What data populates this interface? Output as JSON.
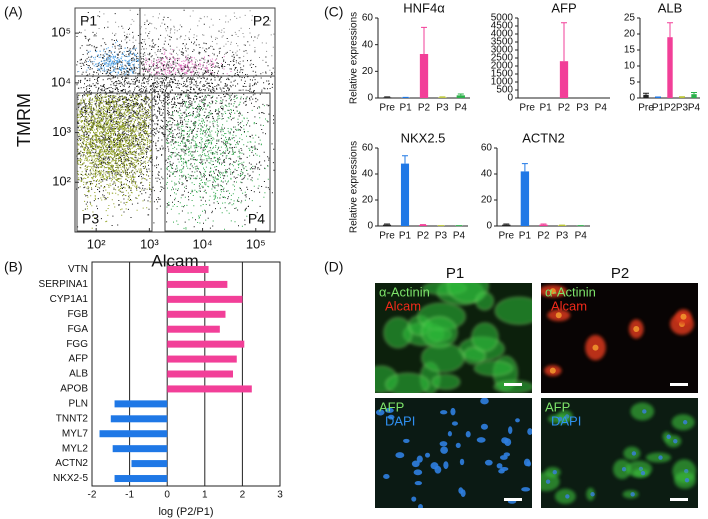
{
  "panel_labels": [
    "(A)",
    "(B)",
    "(C)",
    "(D)"
  ],
  "chart_data": [
    {
      "type": "scatter",
      "xlabel": "Alcam",
      "ylabel": "TMRM",
      "log": true,
      "xlim": [
        40,
        230000
      ],
      "ylim": [
        10,
        320000
      ],
      "xticks": [
        {
          "value": 100,
          "label": "10²"
        },
        {
          "value": 1000,
          "label": "10³"
        },
        {
          "value": 10000,
          "label": "10⁴"
        },
        {
          "value": 100000,
          "label": "10⁵"
        }
      ],
      "yticks": [
        {
          "value": 100,
          "label": "10²"
        },
        {
          "value": 1000,
          "label": "10³"
        },
        {
          "value": 10000,
          "label": "10⁴"
        },
        {
          "value": 100000,
          "label": "10⁵"
        }
      ],
      "annotations": [
        "P1",
        "P2",
        "P3",
        "P4"
      ]
    },
    {
      "type": "bar",
      "horizontal": true,
      "xlabel": "log (P2/P1)",
      "categories": [
        "VTN",
        "SERPINA1",
        "CYP1A1",
        "FGB",
        "FGA",
        "FGG",
        "AFP",
        "ALB",
        "APOB",
        "PLN",
        "TNNT2",
        "MYL7",
        "MYL2",
        "ACTN2",
        "NKX2-5"
      ],
      "values": [
        1.1,
        1.6,
        2.0,
        1.55,
        1.4,
        2.05,
        1.85,
        1.75,
        2.25,
        -1.4,
        -1.5,
        -1.8,
        -1.45,
        -0.95,
        -1.4
      ],
      "color_positive": "#f23f98",
      "color_negative": "#1f78e6",
      "xlim": [
        -2,
        3
      ],
      "xticks": [
        -2,
        -1,
        0,
        1,
        2,
        3
      ],
      "grid": true
    },
    {
      "type": "bar",
      "title": "HNF4α",
      "ylabel": "Relative expressions",
      "categories": [
        "Pre",
        "P1",
        "P2",
        "P3",
        "P4"
      ],
      "values": [
        0.5,
        0.3,
        33,
        0.5,
        2
      ],
      "errors": [
        0.3,
        0.2,
        20,
        0.3,
        1
      ],
      "colors": [
        "#222222",
        "#1f78e6",
        "#f23f98",
        "#b8c230",
        "#2bb04a"
      ],
      "ylim": [
        0,
        60
      ],
      "yticks": [
        0,
        20,
        40,
        60
      ]
    },
    {
      "type": "bar",
      "title": "AFP",
      "categories": [
        "Pre",
        "P1",
        "P2",
        "P3",
        "P4"
      ],
      "values": [
        0,
        0,
        2300,
        0,
        0
      ],
      "errors": [
        0,
        0,
        2400,
        0,
        0
      ],
      "colors": [
        "#222222",
        "#1f78e6",
        "#f23f98",
        "#b8c230",
        "#2bb04a"
      ],
      "ylim": [
        0,
        5000
      ],
      "yticks": [
        0,
        500,
        1000,
        1500,
        2000,
        2500,
        3000,
        3500,
        4000,
        4500,
        5000
      ]
    },
    {
      "type": "bar",
      "title": "ALB",
      "categories": [
        "Pre",
        "P1",
        "P2",
        "P3",
        "P4"
      ],
      "values": [
        1,
        0.2,
        19,
        0.3,
        1.2
      ],
      "errors": [
        0.5,
        0.1,
        4.5,
        0.1,
        0.5
      ],
      "colors": [
        "#222222",
        "#1f78e6",
        "#f23f98",
        "#b8c230",
        "#2bb04a"
      ],
      "ylim": [
        0,
        25
      ],
      "yticks": [
        0,
        5,
        10,
        15,
        20,
        25
      ]
    },
    {
      "type": "bar",
      "title": "NKX2.5",
      "ylabel": "Relative expressions",
      "categories": [
        "Pre",
        "P1",
        "P2",
        "P3",
        "P4"
      ],
      "values": [
        1,
        48,
        0.8,
        0.2,
        0.2
      ],
      "errors": [
        0.5,
        6,
        0.3,
        0.1,
        0.1
      ],
      "colors": [
        "#222222",
        "#1f78e6",
        "#f23f98",
        "#b8c230",
        "#2bb04a"
      ],
      "ylim": [
        0,
        60
      ],
      "yticks": [
        0,
        20,
        40,
        60
      ]
    },
    {
      "type": "bar",
      "title": "ACTN2",
      "categories": [
        "Pre",
        "P1",
        "P2",
        "P3",
        "P4"
      ],
      "values": [
        1,
        42,
        1,
        0.5,
        0.2
      ],
      "errors": [
        0.5,
        6,
        0.5,
        0.2,
        0.1
      ],
      "colors": [
        "#222222",
        "#1f78e6",
        "#f23f98",
        "#b8c230",
        "#2bb04a"
      ],
      "ylim": [
        0,
        60
      ],
      "yticks": [
        0,
        20,
        40,
        60
      ]
    }
  ],
  "images": {
    "columns": [
      "P1",
      "P2"
    ],
    "panels": [
      {
        "labels": [
          "α-Actinin",
          "Alcam"
        ]
      },
      {
        "labels": [
          "α-Actinin",
          "Alcam"
        ]
      },
      {
        "labels": [
          "AFP",
          "DAPI"
        ]
      },
      {
        "labels": [
          "AFP",
          "DAPI"
        ]
      }
    ]
  }
}
